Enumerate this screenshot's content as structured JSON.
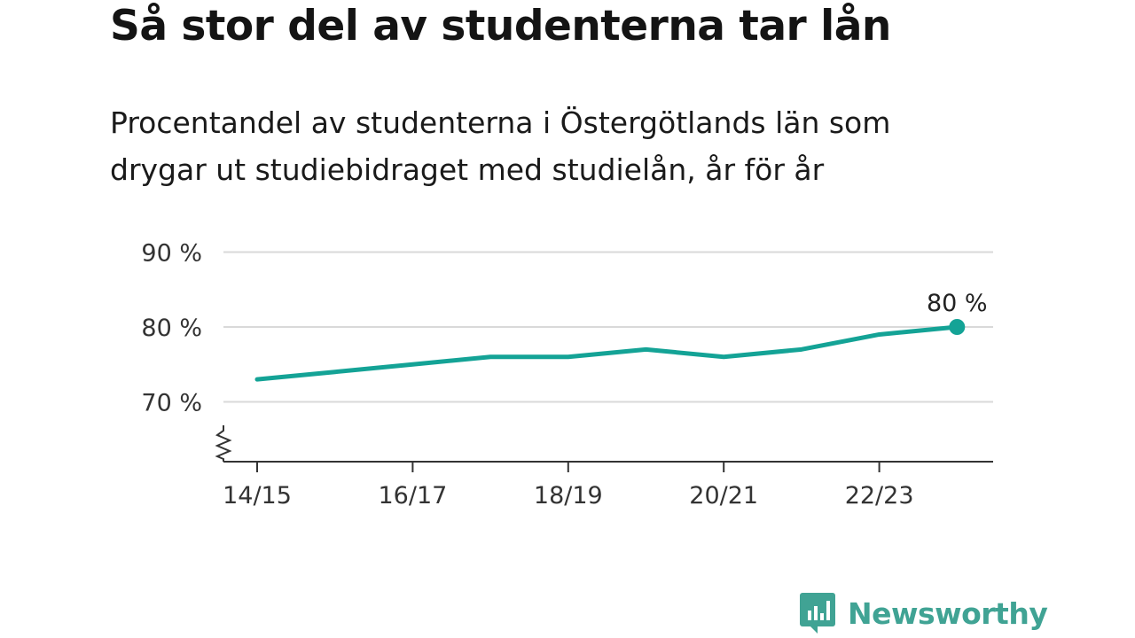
{
  "title": "Så stor del av studenterna tar lån",
  "subtitle_lines": [
    "Procentandel av studenterna i Östergötlands län som",
    "drygar ut studiebidraget med studielån, år för år"
  ],
  "brand": {
    "name": "Newsworthy",
    "color": "#40a394"
  },
  "chart_data": {
    "type": "line",
    "x": [
      "14/15",
      "15/16",
      "16/17",
      "17/18",
      "18/19",
      "19/20",
      "20/21",
      "21/22",
      "22/23",
      "23/24"
    ],
    "x_tick_labels": [
      "14/15",
      "16/17",
      "18/19",
      "20/21",
      "22/23"
    ],
    "series": [
      {
        "values": [
          73,
          74,
          75,
          76,
          76,
          77,
          76,
          77,
          79,
          80
        ],
        "color": "#14a396"
      }
    ],
    "y_ticks": [
      70,
      80,
      90
    ],
    "y_tick_labels": [
      "70 %",
      "80 %",
      "90 %"
    ],
    "ylim": [
      62,
      90
    ],
    "axis_break": true,
    "grid": true,
    "end_label": "80 %"
  }
}
